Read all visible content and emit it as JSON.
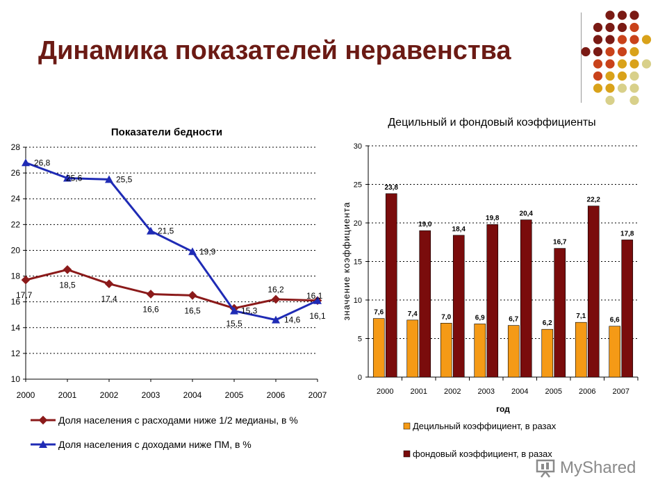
{
  "slide": {
    "title": "Динамика показателей неравенства",
    "watermark": "MyShared"
  },
  "colors": {
    "title": "#6b1a14",
    "series_poverty_expenses": "#8b1a1a",
    "series_poverty_income": "#1f2bb5",
    "bar_decile": "#f59a16",
    "bar_fund": "#7a0c0c",
    "dots": [
      "#7a1a14",
      "#c9421a",
      "#d9a21a",
      "#d8d08a"
    ]
  },
  "chart_data": [
    {
      "type": "line",
      "title": "Показатели бедности",
      "x": [
        "2000",
        "2001",
        "2002",
        "2003",
        "2004",
        "2005",
        "2006",
        "2007"
      ],
      "ylim": [
        10,
        28
      ],
      "yticks": [
        "10",
        "12",
        "14",
        "16",
        "18",
        "20",
        "22",
        "24",
        "26",
        "28"
      ],
      "grid": true,
      "legend_position": "bottom",
      "series": [
        {
          "name": "Доля населения с расходами ниже 1/2 медианы, в %",
          "values": [
            17.7,
            18.5,
            17.4,
            16.6,
            16.5,
            15.5,
            16.2,
            16.1
          ],
          "labels": [
            "17,7",
            "18,5",
            "17,4",
            "16,6",
            "16,5",
            "15,5",
            "16,2",
            "16,1"
          ]
        },
        {
          "name": "Доля населения с доходами ниже ПМ, в %",
          "values": [
            26.8,
            25.6,
            25.5,
            21.5,
            19.9,
            15.3,
            14.6,
            16.1
          ],
          "labels": [
            "26,8",
            "25,6",
            "25,5",
            "21,5",
            "19,9",
            "15,3",
            "14,6",
            "16,1"
          ]
        }
      ]
    },
    {
      "type": "bar",
      "title": "Децильный и фондовый коэффициенты",
      "xlabel": "год",
      "ylabel": "значение коэффициента",
      "categories": [
        "2000",
        "2001",
        "2002",
        "2003",
        "2004",
        "2005",
        "2006",
        "2007"
      ],
      "ylim": [
        0,
        30
      ],
      "yticks": [
        "0",
        "5",
        "10",
        "15",
        "20",
        "25",
        "30"
      ],
      "grid": true,
      "legend_position": "bottom",
      "series": [
        {
          "name": "Децильный коэффициент, в разах",
          "values": [
            7.6,
            7.4,
            7.0,
            6.9,
            6.7,
            6.2,
            7.1,
            6.6
          ],
          "labels": [
            "7,6",
            "7,4",
            "7,0",
            "6,9",
            "6,7",
            "6,2",
            "7,1",
            "6,6"
          ]
        },
        {
          "name": "фондовый коэффициент, в разах",
          "values": [
            23.8,
            19.0,
            18.4,
            19.8,
            20.4,
            16.7,
            22.2,
            17.8
          ],
          "labels": [
            "23,8",
            "19,0",
            "18,4",
            "19,8",
            "20,4",
            "16,7",
            "22,2",
            "17,8"
          ]
        }
      ]
    }
  ]
}
